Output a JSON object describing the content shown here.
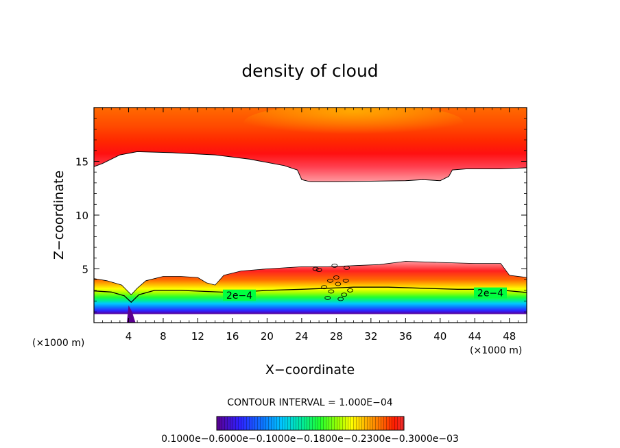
{
  "chart_data": {
    "type": "heatmap",
    "title": "density of cloud",
    "xlabel": "X−coordinate",
    "ylabel": "Z−coordinate",
    "x_unit_left": "(×1000 m)",
    "x_unit_right": "(×1000 m)",
    "xlim": [
      0,
      50
    ],
    "ylim": [
      0,
      20
    ],
    "x_ticks": [
      4,
      8,
      12,
      16,
      20,
      24,
      28,
      32,
      36,
      40,
      44,
      48
    ],
    "y_ticks": [
      5,
      10,
      15
    ],
    "x_tick_labels": [
      "4",
      "8",
      "12",
      "16",
      "20",
      "24",
      "28",
      "32",
      "36",
      "40",
      "44",
      "48"
    ],
    "y_tick_labels": [
      "5",
      "10",
      "15"
    ],
    "contour_labels": [
      {
        "text": "2e−4",
        "x": 16.8,
        "z": 2.5
      },
      {
        "text": "2e−4",
        "x": 45.8,
        "z": 2.7
      }
    ],
    "contour_interval_text": "CONTOUR INTERVAL = 1.000E−04",
    "colorbar_labels_text": "0.1000e−0.6000e−0.1000e−0.1800e−0.2300e−0.3000e−03",
    "upper_layer": {
      "top_z": 20,
      "base_profile": [
        [
          0,
          14.5
        ],
        [
          1,
          14.8
        ],
        [
          3,
          15.6
        ],
        [
          5,
          15.9
        ],
        [
          9,
          15.8
        ],
        [
          14,
          15.6
        ],
        [
          18,
          15.2
        ],
        [
          22,
          14.6
        ],
        [
          23.5,
          14.2
        ],
        [
          24,
          13.3
        ],
        [
          25,
          13.1
        ],
        [
          28,
          13.1
        ],
        [
          32,
          13.15
        ],
        [
          36,
          13.2
        ],
        [
          38,
          13.3
        ],
        [
          40,
          13.2
        ],
        [
          41,
          13.6
        ],
        [
          41.4,
          14.2
        ],
        [
          43,
          14.3
        ],
        [
          47,
          14.3
        ],
        [
          50,
          14.4
        ]
      ]
    },
    "lower_layer": {
      "top_profile": [
        [
          0,
          4.1
        ],
        [
          1.5,
          3.9
        ],
        [
          3.2,
          3.5
        ],
        [
          4.3,
          2.6
        ],
        [
          5,
          3.2
        ],
        [
          6,
          3.9
        ],
        [
          8,
          4.3
        ],
        [
          10,
          4.3
        ],
        [
          12,
          4.2
        ],
        [
          13,
          3.7
        ],
        [
          14,
          3.5
        ],
        [
          15,
          4.4
        ],
        [
          17,
          4.8
        ],
        [
          20,
          5.0
        ],
        [
          24,
          5.2
        ],
        [
          27,
          5.2
        ],
        [
          30,
          5.3
        ],
        [
          33,
          5.4
        ],
        [
          36,
          5.7
        ],
        [
          40,
          5.6
        ],
        [
          44,
          5.5
        ],
        [
          47,
          5.5
        ],
        [
          48,
          4.4
        ],
        [
          50,
          4.2
        ]
      ],
      "contour_2e4": [
        [
          0,
          2.95
        ],
        [
          2,
          2.85
        ],
        [
          3.5,
          2.5
        ],
        [
          4.3,
          1.9
        ],
        [
          5.2,
          2.6
        ],
        [
          7,
          3.0
        ],
        [
          10,
          3.0
        ],
        [
          13,
          2.9
        ],
        [
          16,
          2.8
        ],
        [
          20,
          3.0
        ],
        [
          24,
          3.1
        ],
        [
          27,
          3.2
        ],
        [
          30,
          3.3
        ],
        [
          34,
          3.3
        ],
        [
          38,
          3.2
        ],
        [
          42,
          3.1
        ],
        [
          46,
          3.1
        ],
        [
          50,
          2.8
        ]
      ],
      "base_z": 0.8
    },
    "colorscale": [
      "#5b0090",
      "#2f1fff",
      "#0b78ff",
      "#00c8ff",
      "#00e8a0",
      "#20ff30",
      "#a0ff00",
      "#ffff00",
      "#ffb000",
      "#ff6a00",
      "#ff1a00",
      "#f01010"
    ],
    "colorbar_range": [
      0.0001,
      0.0003
    ]
  }
}
